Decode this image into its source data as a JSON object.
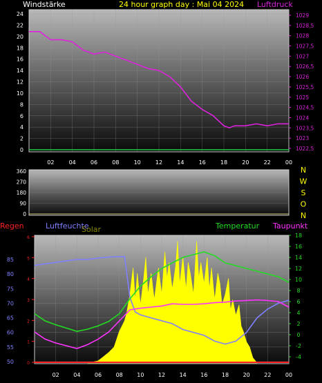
{
  "header": {
    "left_label": "Windstärke",
    "title": "24 hour graph day : Mai 04 2024",
    "right_label": "Luftdruck"
  },
  "colors": {
    "wind_axis": "#ffffff",
    "pressure": "#dd22dd",
    "title": "#ffff00",
    "wind_line": "#22cc44",
    "dir_letters": "#ffff00",
    "rain": "#ff2222",
    "humidity": "#8080ff",
    "solar": "#ffff00",
    "temperature": "#22dd22",
    "dewpoint": "#ff33ff"
  },
  "chart_data": [
    {
      "type": "line",
      "name": "wind-pressure",
      "x_ticks": [
        "02",
        "04",
        "06",
        "08",
        "10",
        "12",
        "14",
        "16",
        "18",
        "20",
        "22",
        "00"
      ],
      "y_left_ticks": [
        "24",
        "22",
        "20",
        "18",
        "16",
        "14",
        "12",
        "10",
        "8",
        "6",
        "4",
        "2",
        "0"
      ],
      "y_right_ticks": [
        "1029",
        "1028,5",
        "1028",
        "1027,5",
        "1027",
        "1026,5",
        "1026",
        "1025,5",
        "1025",
        "1024,5",
        "1024",
        "1023,5",
        "1023",
        "1022,5"
      ],
      "ylim_left": [
        0,
        24
      ],
      "ylim_right": [
        1022.5,
        1029
      ],
      "series": [
        {
          "name": "Luftdruck",
          "axis": "right",
          "x": [
            0,
            1,
            2,
            3,
            4,
            5,
            6,
            7,
            8,
            9,
            10,
            11,
            12,
            13,
            14,
            15,
            16,
            17,
            18,
            18.5,
            19,
            20,
            21,
            22,
            23,
            24
          ],
          "values": [
            1028.2,
            1028.2,
            1027.8,
            1027.8,
            1027.7,
            1027.3,
            1027.1,
            1027.2,
            1027.0,
            1026.8,
            1026.6,
            1026.4,
            1026.3,
            1026.0,
            1025.5,
            1024.8,
            1024.4,
            1024.1,
            1023.6,
            1023.5,
            1023.6,
            1023.6,
            1023.7,
            1023.6,
            1023.7,
            1023.7
          ]
        },
        {
          "name": "Windstärke",
          "axis": "left",
          "x": [
            0,
            24
          ],
          "values": [
            0,
            0
          ]
        }
      ]
    },
    {
      "type": "line",
      "name": "wind-direction",
      "x_ticks": [],
      "y_ticks": [
        "360",
        "270",
        "180",
        "90",
        "0"
      ],
      "ylim": [
        0,
        360
      ],
      "dir_letters": [
        "N",
        "W",
        "S",
        "O",
        "N"
      ]
    },
    {
      "type": "line",
      "name": "humidity-temperature",
      "legend": [
        "Regen",
        "Luftfeuchte",
        "Solar",
        "Temperatur",
        "Taupunkt"
      ],
      "x_ticks": [
        "02",
        "04",
        "06",
        "08",
        "10",
        "12",
        "14",
        "16",
        "18",
        "20",
        "22",
        "00"
      ],
      "y_left_ticks": [
        "85",
        "80",
        "75",
        "70",
        "65",
        "60",
        "55",
        "50"
      ],
      "y_right_ticks": [
        "18",
        "16",
        "14",
        "12",
        "10",
        "8",
        "6",
        "4",
        "2",
        "0",
        "-2",
        "-4"
      ],
      "rain_ticks": [
        "6",
        "5",
        "4",
        "3",
        "2",
        "1",
        "0"
      ],
      "ylim_left": [
        49,
        88
      ],
      "ylim_right": [
        -5,
        18
      ],
      "series": [
        {
          "name": "Luftfeuchte",
          "axis": "left",
          "x": [
            0,
            1,
            2,
            3,
            4,
            5,
            6,
            7,
            8,
            8.5,
            9,
            9.5,
            10,
            11,
            12,
            13,
            14,
            15,
            16,
            17,
            18,
            19,
            20,
            21,
            22,
            23,
            24
          ],
          "values": [
            83,
            83.5,
            84,
            84.5,
            85,
            85,
            85.5,
            85.8,
            86,
            86,
            72,
            67,
            66,
            65,
            64,
            63,
            61,
            60,
            59,
            57,
            56,
            57,
            60,
            65,
            68,
            70,
            71
          ]
        },
        {
          "name": "Temperatur",
          "axis": "right",
          "x": [
            0,
            1,
            2,
            3,
            4,
            5,
            6,
            7,
            8,
            9,
            10,
            11,
            12,
            13,
            14,
            15,
            16,
            17,
            18,
            19,
            20,
            21,
            22,
            23,
            24
          ],
          "values": [
            3.8,
            2.5,
            1.8,
            1.2,
            0.6,
            1.0,
            1.6,
            2.4,
            3.8,
            6.5,
            8.8,
            10.5,
            12.0,
            13.0,
            14.0,
            14.5,
            15.0,
            14.3,
            13.0,
            12.5,
            12.0,
            11.5,
            11.0,
            10.5,
            9.5
          ]
        },
        {
          "name": "Taupunkt",
          "axis": "right",
          "x": [
            0,
            1,
            2,
            3,
            4,
            5,
            6,
            7,
            8,
            9,
            10,
            11,
            12,
            13,
            14,
            15,
            16,
            17,
            18,
            19,
            20,
            21,
            22,
            23,
            24
          ],
          "values": [
            0.5,
            -0.8,
            -1.5,
            -2.0,
            -2.5,
            -1.8,
            -0.8,
            0.5,
            2.5,
            4.5,
            4.8,
            5.0,
            5.2,
            5.6,
            5.5,
            5.5,
            5.6,
            5.8,
            5.9,
            6.1,
            6.2,
            6.3,
            6.2,
            6.0,
            5.0
          ]
        },
        {
          "name": "Regen",
          "axis": "rain",
          "x": [
            0,
            24
          ],
          "values": [
            0,
            0
          ]
        }
      ],
      "solar_x": [
        5,
        6,
        6.5,
        7,
        7.5,
        8,
        8.5,
        8.7,
        9,
        9.3,
        9.5,
        9.7,
        10,
        10.3,
        10.5,
        10.7,
        11,
        11.3,
        11.5,
        11.7,
        12,
        12.3,
        12.5,
        12.7,
        13,
        13.3,
        13.5,
        13.7,
        14,
        14.3,
        14.5,
        14.7,
        15,
        15.3,
        15.5,
        15.7,
        16,
        16.3,
        16.5,
        16.7,
        17,
        17.3,
        17.5,
        17.7,
        18,
        18.3,
        18.5,
        18.7,
        19,
        19.3,
        19.5,
        19.7,
        20,
        20.3,
        20.6,
        21
      ],
      "solar_values": [
        0,
        4,
        12,
        20,
        30,
        60,
        80,
        95,
        130,
        180,
        120,
        170,
        110,
        160,
        200,
        130,
        170,
        120,
        150,
        180,
        130,
        210,
        160,
        190,
        140,
        180,
        230,
        150,
        200,
        140,
        190,
        170,
        130,
        230,
        160,
        190,
        150,
        200,
        140,
        180,
        120,
        170,
        150,
        110,
        130,
        160,
        100,
        120,
        90,
        110,
        70,
        60,
        40,
        30,
        10,
        0
      ],
      "solar_max": 240
    }
  ]
}
